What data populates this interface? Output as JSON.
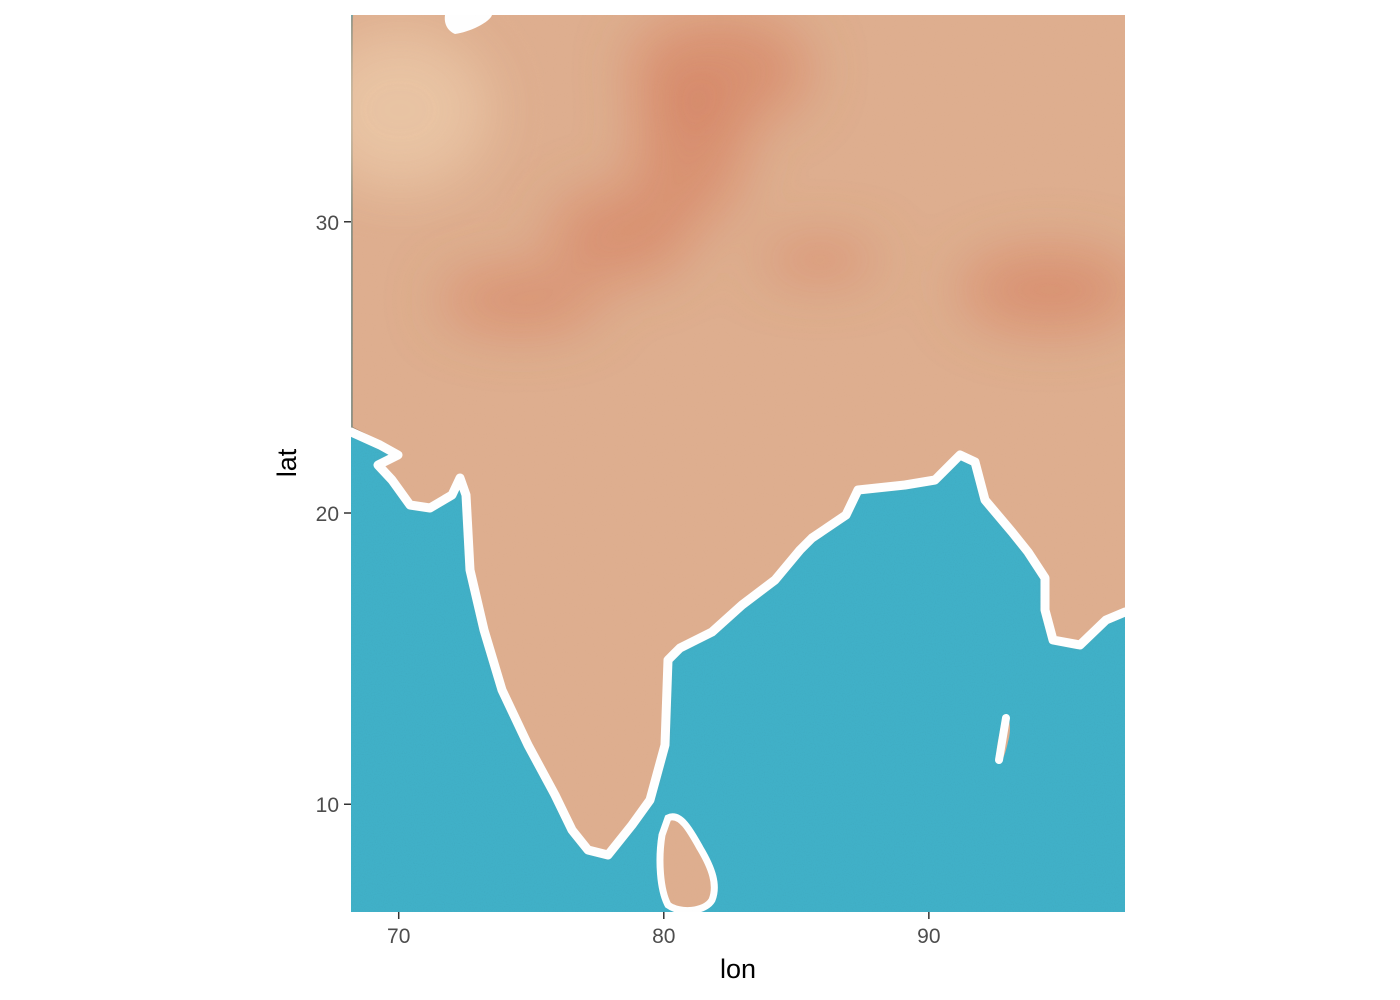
{
  "colors": {
    "land_light": "#ecc9a6",
    "land_mid": "#dca886",
    "land_dark": "#cf6f4c",
    "sea": "#3fb6cc",
    "sea_dark": "#25a5c2",
    "coastline": "#ffffff",
    "tick": "#333333",
    "tick_label": "#4d4d4d"
  },
  "map": {
    "style": "watercolor basemap",
    "extent": {
      "lon": [
        68.2,
        97.4
      ],
      "lat": [
        6.3,
        37.1
      ]
    }
  },
  "axes": {
    "x": {
      "title": "lon",
      "ticks": [
        70,
        80,
        90
      ],
      "tick_labels": [
        "70",
        "80",
        "90"
      ]
    },
    "y": {
      "title": "lat",
      "ticks": [
        10,
        20,
        30
      ],
      "tick_labels": [
        "10",
        "20",
        "30"
      ]
    }
  }
}
